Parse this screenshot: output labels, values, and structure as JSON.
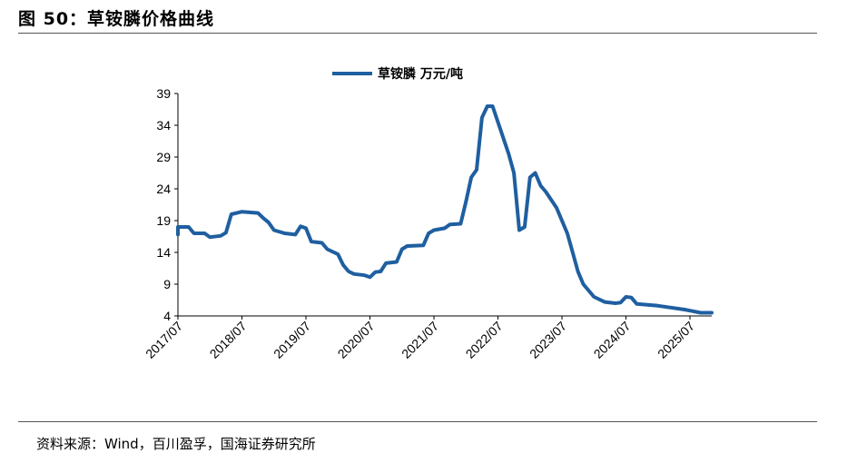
{
  "figure": {
    "title": "图 50：草铵膦价格曲线",
    "source": "资料来源：Wind，百川盈孚，国海证券研究所"
  },
  "chart_data": {
    "type": "line",
    "title": "",
    "xlabel": "",
    "ylabel": "",
    "ylim": [
      4,
      39
    ],
    "yticks": [
      "39",
      "34",
      "29",
      "24",
      "19",
      "14",
      "9",
      "4"
    ],
    "xticks": [
      "2017/07",
      "2018/07",
      "2019/07",
      "2020/07",
      "2021/07",
      "2022/07",
      "2023/07",
      "2024/07",
      "2025/07"
    ],
    "legend": "top-center",
    "grid": false,
    "line_color": "#1f5fa0",
    "series": [
      {
        "name": "草铵膦 万元/吨",
        "points": [
          [
            "2017-07",
            16.8
          ],
          [
            "2017-07",
            18.0
          ],
          [
            "2017-09",
            18.0
          ],
          [
            "2017-10",
            17.0
          ],
          [
            "2017-12",
            17.0
          ],
          [
            "2018-01",
            16.4
          ],
          [
            "2018-03",
            16.6
          ],
          [
            "2018-04",
            17.1
          ],
          [
            "2018-05",
            20.0
          ],
          [
            "2018-07",
            20.4
          ],
          [
            "2018-10",
            20.2
          ],
          [
            "2018-11",
            19.4
          ],
          [
            "2018-12",
            18.7
          ],
          [
            "2019-01",
            17.5
          ],
          [
            "2019-03",
            17.0
          ],
          [
            "2019-05",
            16.8
          ],
          [
            "2019-06",
            18.1
          ],
          [
            "2019-07",
            17.8
          ],
          [
            "2019-08",
            15.7
          ],
          [
            "2019-10",
            15.5
          ],
          [
            "2019-11",
            14.5
          ],
          [
            "2020-01",
            13.7
          ],
          [
            "2020-02",
            12.0
          ],
          [
            "2020-03",
            11.0
          ],
          [
            "2020-04",
            10.6
          ],
          [
            "2020-06",
            10.4
          ],
          [
            "2020-07",
            10.1
          ],
          [
            "2020-08",
            10.9
          ],
          [
            "2020-09",
            11.0
          ],
          [
            "2020-10",
            12.3
          ],
          [
            "2020-12",
            12.5
          ],
          [
            "2021-01",
            14.5
          ],
          [
            "2021-02",
            15.0
          ],
          [
            "2021-05",
            15.1
          ],
          [
            "2021-06",
            17.0
          ],
          [
            "2021-07",
            17.5
          ],
          [
            "2021-09",
            17.8
          ],
          [
            "2021-10",
            18.4
          ],
          [
            "2021-12",
            18.5
          ],
          [
            "2022-01",
            22.0
          ],
          [
            "2022-02",
            25.8
          ],
          [
            "2022-03",
            27.0
          ],
          [
            "2022-04",
            35.2
          ],
          [
            "2022-05",
            37.0
          ],
          [
            "2022-06",
            37.0
          ],
          [
            "2022-07",
            34.5
          ],
          [
            "2022-09",
            29.5
          ],
          [
            "2022-10",
            26.5
          ],
          [
            "2022-11",
            17.5
          ],
          [
            "2022-12",
            18.0
          ],
          [
            "2023-01",
            25.8
          ],
          [
            "2023-02",
            26.5
          ],
          [
            "2023-03",
            24.5
          ],
          [
            "2023-04",
            23.5
          ],
          [
            "2023-06",
            21.0
          ],
          [
            "2023-08",
            17.0
          ],
          [
            "2023-09",
            14.0
          ],
          [
            "2023-10",
            11.0
          ],
          [
            "2023-11",
            9.0
          ],
          [
            "2024-01",
            7.0
          ],
          [
            "2024-03",
            6.2
          ],
          [
            "2024-05",
            6.0
          ],
          [
            "2024-06",
            6.1
          ],
          [
            "2024-07",
            7.0
          ],
          [
            "2024-08",
            6.9
          ],
          [
            "2024-09",
            5.9
          ],
          [
            "2025-01",
            5.6
          ],
          [
            "2025-06",
            5.0
          ],
          [
            "2025-09",
            4.5
          ],
          [
            "2025-12",
            4.5
          ]
        ]
      }
    ]
  }
}
